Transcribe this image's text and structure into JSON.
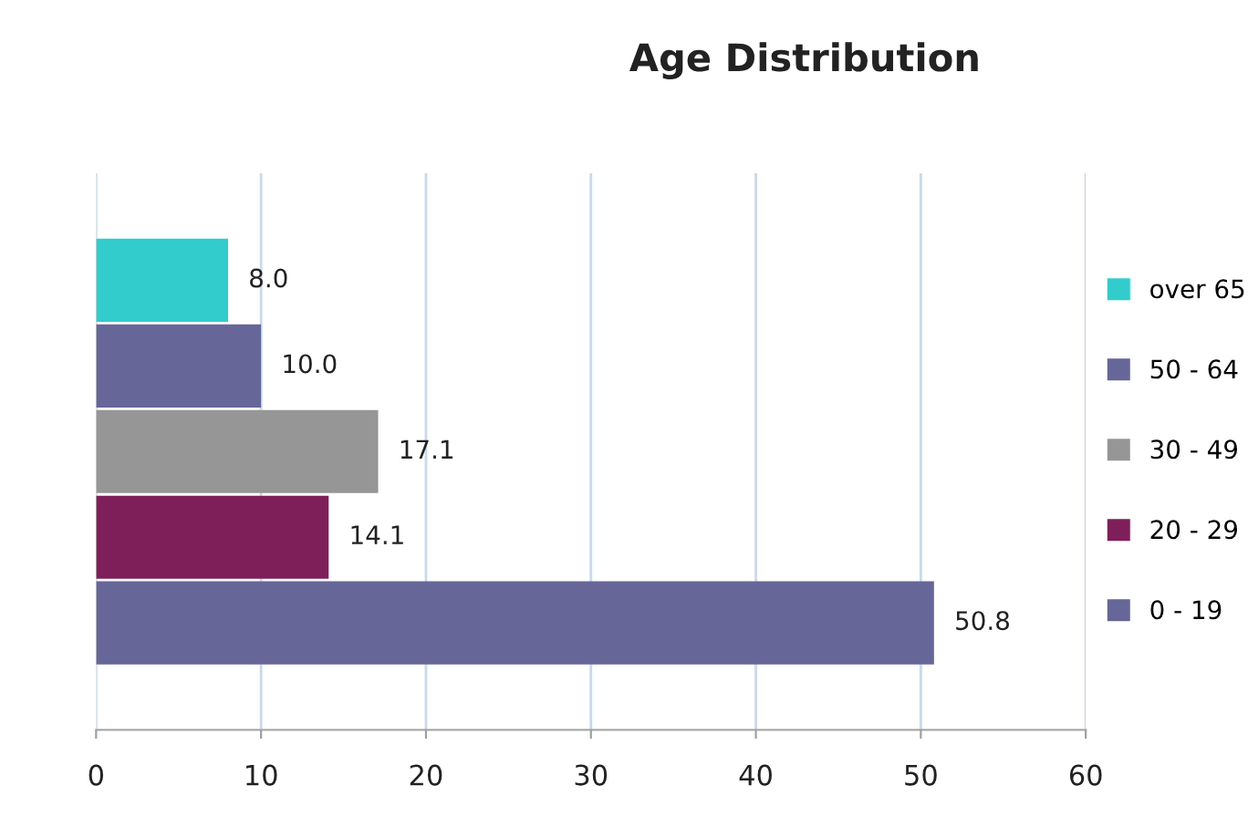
{
  "chart_data": {
    "type": "bar",
    "orientation": "horizontal",
    "title": "Age Distribution",
    "categories": [
      null,
      null,
      null,
      null,
      null
    ],
    "series": [
      {
        "name": "over 65",
        "color": "#33cccc",
        "values": [
          8,
          null,
          null,
          null,
          null
        ],
        "value_labels": [
          "8.0",
          null,
          null,
          null,
          null
        ]
      },
      {
        "name": "50 - 64",
        "color": "#666699",
        "values": [
          null,
          10,
          null,
          null,
          null
        ],
        "value_labels": [
          null,
          "10.0",
          null,
          null,
          null
        ]
      },
      {
        "name": "30 - 49",
        "color": "#969696",
        "values": [
          null,
          null,
          17.1,
          null,
          null
        ],
        "value_labels": [
          null,
          null,
          "17.1",
          null,
          null
        ]
      },
      {
        "name": "20 - 29",
        "color": "#7f1f5a",
        "values": [
          null,
          null,
          null,
          14.1,
          null
        ],
        "value_labels": [
          null,
          null,
          null,
          "14.1",
          null
        ]
      },
      {
        "name": "0 - 19",
        "color": "#666699",
        "values": [
          null,
          null,
          null,
          null,
          50.8
        ],
        "value_labels": [
          null,
          null,
          null,
          null,
          "50.8"
        ]
      }
    ],
    "xlim": [
      0,
      60
    ],
    "xticks": [
      0,
      10,
      20,
      30,
      40,
      50,
      60
    ],
    "grid": "x",
    "legend": "right"
  }
}
